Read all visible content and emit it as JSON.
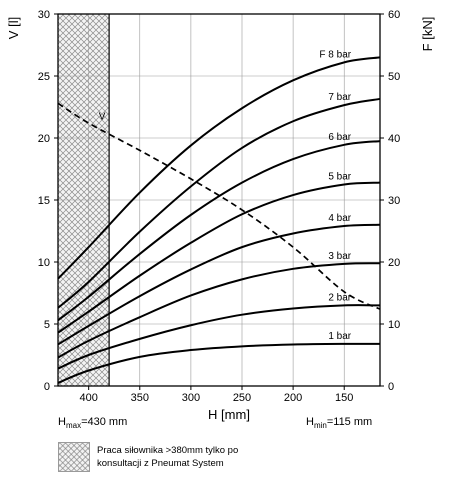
{
  "chart_data": {
    "type": "line",
    "x": [
      430,
      400,
      350,
      300,
      250,
      200,
      150,
      115
    ],
    "xlim": [
      430,
      115
    ],
    "x_ticks": [
      "400",
      "350",
      "300",
      "250",
      "200",
      "150"
    ],
    "xlabel": "H [mm]",
    "ylabel_left": "V [l]",
    "ylim_left": [
      0,
      30
    ],
    "y_ticks_left": [
      "0",
      "5",
      "10",
      "15",
      "20",
      "25",
      "30"
    ],
    "ylabel_right": "F [kN]",
    "ylim_right": [
      0,
      60
    ],
    "y_ticks_right": [
      "0",
      "10",
      "20",
      "30",
      "40",
      "50",
      "60"
    ],
    "grid": true,
    "shaded_region": {
      "x_from": 430,
      "x_to": 380
    },
    "hmax_label": {
      "main": "H",
      "sub": "max",
      "rest": "=430 mm"
    },
    "hmin_label": {
      "main": "H",
      "sub": "min",
      "rest": "=115 mm"
    },
    "series": [
      {
        "name": "1 bar",
        "axis": "right",
        "style": "solid",
        "values": [
          0.5,
          2.5,
          4.7,
          5.8,
          6.4,
          6.7,
          6.8,
          6.8
        ]
      },
      {
        "name": "2 bar",
        "axis": "right",
        "style": "solid",
        "values": [
          2.8,
          5.0,
          7.6,
          9.8,
          11.5,
          12.5,
          13.0,
          13.0
        ]
      },
      {
        "name": "3 bar",
        "axis": "right",
        "style": "solid",
        "values": [
          4.6,
          7.3,
          11.1,
          14.6,
          17.2,
          18.9,
          19.7,
          19.8
        ]
      },
      {
        "name": "4 bar",
        "axis": "right",
        "style": "solid",
        "values": [
          6.7,
          9.7,
          14.5,
          18.8,
          22.4,
          24.6,
          25.8,
          26.0
        ]
      },
      {
        "name": "5 bar",
        "axis": "right",
        "style": "solid",
        "values": [
          8.6,
          12.0,
          17.8,
          23.1,
          27.7,
          30.8,
          32.5,
          32.8
        ]
      },
      {
        "name": "6 bar",
        "axis": "right",
        "style": "solid",
        "values": [
          10.6,
          14.4,
          21.3,
          27.6,
          32.8,
          36.6,
          38.9,
          39.5
        ]
      },
      {
        "name": "7 bar",
        "axis": "right",
        "style": "solid",
        "values": [
          12.6,
          16.8,
          24.9,
          32.2,
          38.4,
          42.7,
          45.3,
          46.3
        ]
      },
      {
        "name": "F 8 bar",
        "axis": "right",
        "style": "solid",
        "values": [
          17.3,
          22.4,
          31.2,
          38.8,
          44.8,
          49.3,
          52.2,
          53.0
        ]
      },
      {
        "name": "V",
        "axis": "left",
        "style": "dashed",
        "values": [
          22.8,
          21.2,
          19.0,
          16.7,
          14.2,
          11.2,
          7.6,
          6.2
        ]
      }
    ]
  },
  "legend": {
    "note": "Praca siłownika >380mm tylko po\nkonsultacji z Pneumat System"
  }
}
